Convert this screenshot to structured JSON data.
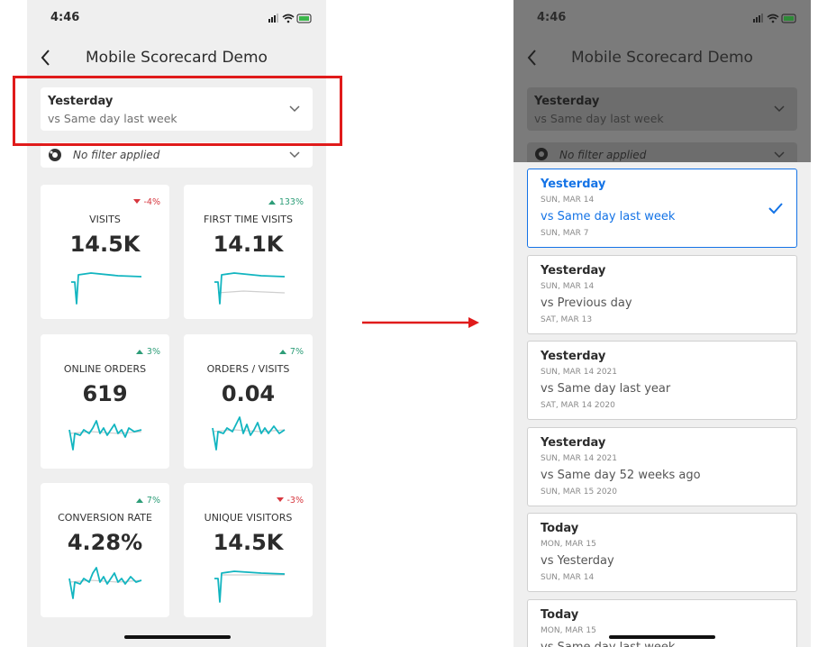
{
  "left": {
    "status_time": "4:46",
    "title": "Mobile Scorecard Demo",
    "date_range": {
      "primary": "Yesterday",
      "compare": "vs Same day last week"
    },
    "filter": "No filter applied",
    "cards": [
      {
        "name": "VISITS",
        "value": "14.5K",
        "change": "-4%",
        "direction": "down"
      },
      {
        "name": "FIRST TIME VISITS",
        "value": "14.1K",
        "change": "133%",
        "direction": "up"
      },
      {
        "name": "ONLINE ORDERS",
        "value": "619",
        "change": "3%",
        "direction": "up"
      },
      {
        "name": "ORDERS / VISITS",
        "value": "0.04",
        "change": "7%",
        "direction": "up"
      },
      {
        "name": "CONVERSION RATE",
        "value": "4.28%",
        "change": "7%",
        "direction": "up"
      },
      {
        "name": "UNIQUE VISITORS",
        "value": "14.5K",
        "change": "-3%",
        "direction": "down"
      }
    ]
  },
  "right": {
    "status_time": "4:46",
    "title": "Mobile Scorecard Demo",
    "date_range": {
      "primary": "Yesterday",
      "compare": "vs Same day last week"
    },
    "filter": "No filter applied",
    "options": [
      {
        "primary": "Yesterday",
        "primary_date": "SUN, MAR 14",
        "compare": "vs Same day last week",
        "compare_date": "SUN, MAR 7",
        "selected": true
      },
      {
        "primary": "Yesterday",
        "primary_date": "SUN, MAR 14",
        "compare": "vs Previous day",
        "compare_date": "SAT, MAR 13",
        "selected": false
      },
      {
        "primary": "Yesterday",
        "primary_date": "SUN, MAR 14 2021",
        "compare": "vs Same day last year",
        "compare_date": "SAT, MAR 14 2020",
        "selected": false
      },
      {
        "primary": "Yesterday",
        "primary_date": "SUN, MAR 14 2021",
        "compare": "vs Same day 52 weeks ago",
        "compare_date": "SUN, MAR 15 2020",
        "selected": false
      },
      {
        "primary": "Today",
        "primary_date": "MON, MAR 15",
        "compare": "vs Yesterday",
        "compare_date": "SUN, MAR 14",
        "selected": false
      },
      {
        "primary": "Today",
        "primary_date": "MON, MAR 15",
        "compare": "vs Same day last week",
        "compare_date": "",
        "selected": false
      }
    ]
  }
}
